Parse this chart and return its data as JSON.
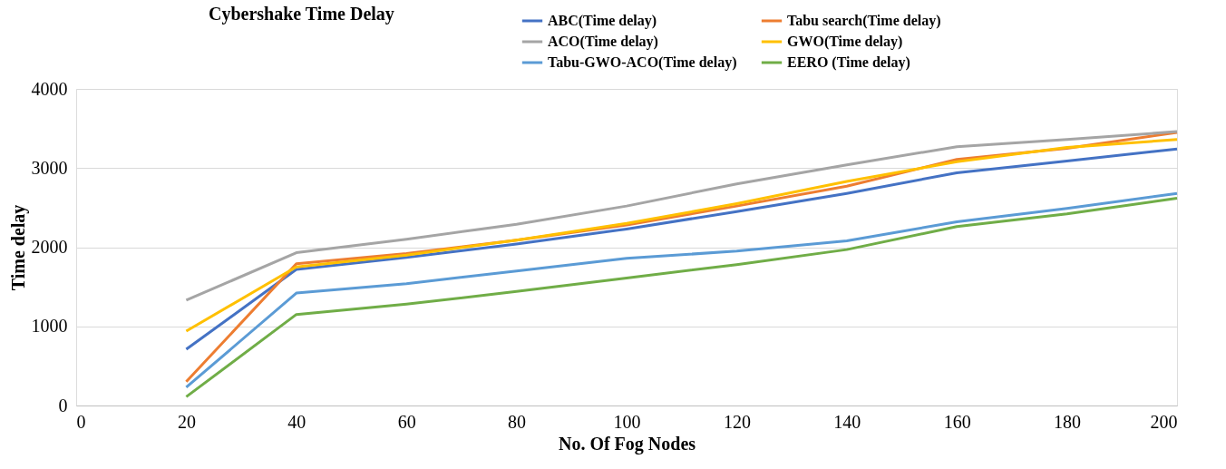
{
  "chart_data": {
    "type": "line",
    "title": "Cybershake Time Delay",
    "xlabel": "No. Of Fog Nodes",
    "ylabel": "Time delay",
    "x": [
      20,
      40,
      60,
      80,
      100,
      120,
      140,
      160,
      180,
      200
    ],
    "xlim": [
      0,
      200
    ],
    "xticks": [
      0,
      20,
      40,
      60,
      80,
      100,
      120,
      140,
      160,
      180,
      200
    ],
    "ylim": [
      0,
      4000
    ],
    "yticks": [
      0,
      1000,
      2000,
      3000,
      4000
    ],
    "grid": "y",
    "legend": "top right",
    "marker": "none",
    "line_style": "solid",
    "series": [
      {
        "name": "ABC(Time delay)",
        "color": "#4472c4",
        "values": [
          710,
          1720,
          1870,
          2040,
          2230,
          2450,
          2680,
          2940,
          3090,
          3240
        ]
      },
      {
        "name": "Tabu search(Time delay)",
        "color": "#ed7d31",
        "values": [
          300,
          1790,
          1920,
          2090,
          2280,
          2520,
          2770,
          3110,
          3250,
          3450
        ]
      },
      {
        "name": "ACO(Time delay)",
        "color": "#a5a5a5",
        "values": [
          1330,
          1930,
          2100,
          2290,
          2520,
          2800,
          3040,
          3270,
          3360,
          3460
        ]
      },
      {
        "name": "GWO(Time delay)",
        "color": "#ffc000",
        "values": [
          940,
          1750,
          1900,
          2090,
          2300,
          2550,
          2830,
          3080,
          3260,
          3360
        ]
      },
      {
        "name": "Tabu-GWO-ACO(Time delay)",
        "color": "#5b9bd5",
        "values": [
          230,
          1420,
          1540,
          1700,
          1860,
          1950,
          2080,
          2320,
          2490,
          2680
        ]
      },
      {
        "name": "EERO (Time delay)",
        "color": "#70ad47",
        "values": [
          110,
          1150,
          1280,
          1440,
          1610,
          1780,
          1970,
          2260,
          2420,
          2620
        ]
      }
    ]
  }
}
